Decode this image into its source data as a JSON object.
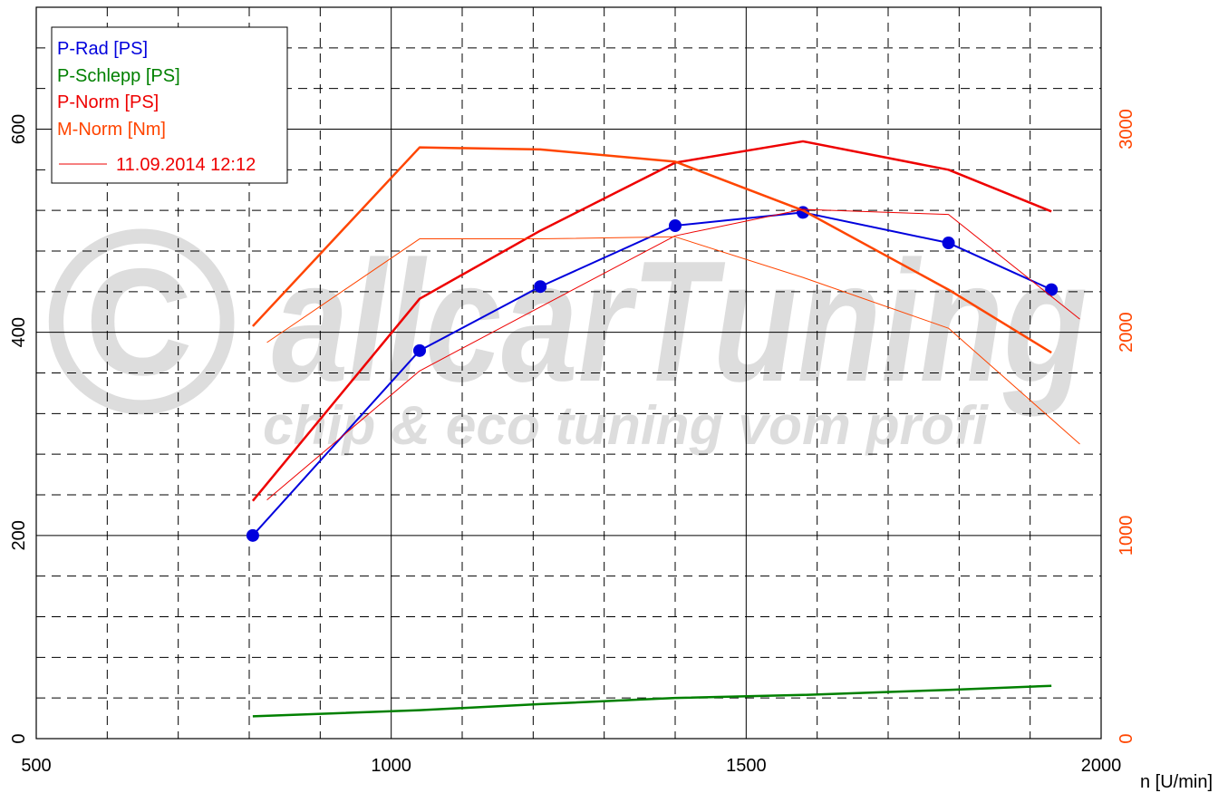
{
  "watermark": {
    "main": "allcarTuning",
    "sub": "chip & eco tuning vom profi",
    "symbol": "©"
  },
  "chart_data": {
    "type": "line",
    "xlabel": "n [U/min]",
    "xlim": [
      500,
      2000
    ],
    "x_ticks": [
      500,
      1000,
      1500,
      2000
    ],
    "ylim_left": [
      0,
      720
    ],
    "y_ticks_left": [
      0,
      200,
      400,
      600
    ],
    "ylim_right": [
      0,
      3600
    ],
    "y_ticks_right": [
      0,
      1000,
      2000,
      3000
    ],
    "grid": true,
    "legend_position": "top-left",
    "legend": {
      "entries": [
        {
          "label": "P-Rad [PS]",
          "color": "#0000dd"
        },
        {
          "label": "P-Schlepp [PS]",
          "color": "#008000"
        },
        {
          "label": "P-Norm [PS]",
          "color": "#ee0000"
        },
        {
          "label": "M-Norm [Nm]",
          "color": "#ff4500"
        }
      ],
      "date": {
        "label": "11.09.2014 12:12",
        "color": "#ee0000"
      }
    },
    "series": [
      {
        "name": "P-Rad [PS]",
        "axis": "left",
        "color": "#0000dd",
        "markers": true,
        "width": 2,
        "x": [
          805,
          1040,
          1210,
          1400,
          1580,
          1785,
          1930
        ],
        "y": [
          200,
          382,
          445,
          505,
          518,
          488,
          442
        ]
      },
      {
        "name": "P-Schlepp [PS]",
        "axis": "left",
        "color": "#008000",
        "markers": false,
        "width": 2.5,
        "x": [
          805,
          1040,
          1210,
          1400,
          1580,
          1785,
          1930
        ],
        "y": [
          22,
          28,
          34,
          40,
          43,
          48,
          52
        ]
      },
      {
        "name": "P-Norm [PS]",
        "axis": "left",
        "color": "#ee0000",
        "markers": false,
        "width": 2.5,
        "x": [
          805,
          1040,
          1210,
          1400,
          1580,
          1785,
          1930
        ],
        "y": [
          234,
          433,
          500,
          567,
          588,
          560,
          519
        ]
      },
      {
        "name": "M-Norm [Nm]",
        "axis": "right",
        "color": "#ff4500",
        "markers": false,
        "width": 2.5,
        "x": [
          805,
          1040,
          1210,
          1400,
          1580,
          1785,
          1930
        ],
        "y": [
          2030,
          2910,
          2900,
          2840,
          2600,
          2210,
          1900
        ]
      },
      {
        "name": "",
        "axis": "left",
        "color": "#ee0000",
        "markers": false,
        "width": 1,
        "x": [
          825,
          1040,
          1210,
          1400,
          1580,
          1785,
          1970
        ],
        "y": [
          235,
          362,
          425,
          495,
          521,
          516,
          413
        ]
      },
      {
        "name": "",
        "axis": "right",
        "color": "#ff4500",
        "markers": false,
        "width": 1,
        "x": [
          825,
          1040,
          1210,
          1400,
          1580,
          1785,
          1970
        ],
        "y": [
          1950,
          2460,
          2460,
          2470,
          2270,
          2020,
          1450
        ]
      }
    ]
  }
}
